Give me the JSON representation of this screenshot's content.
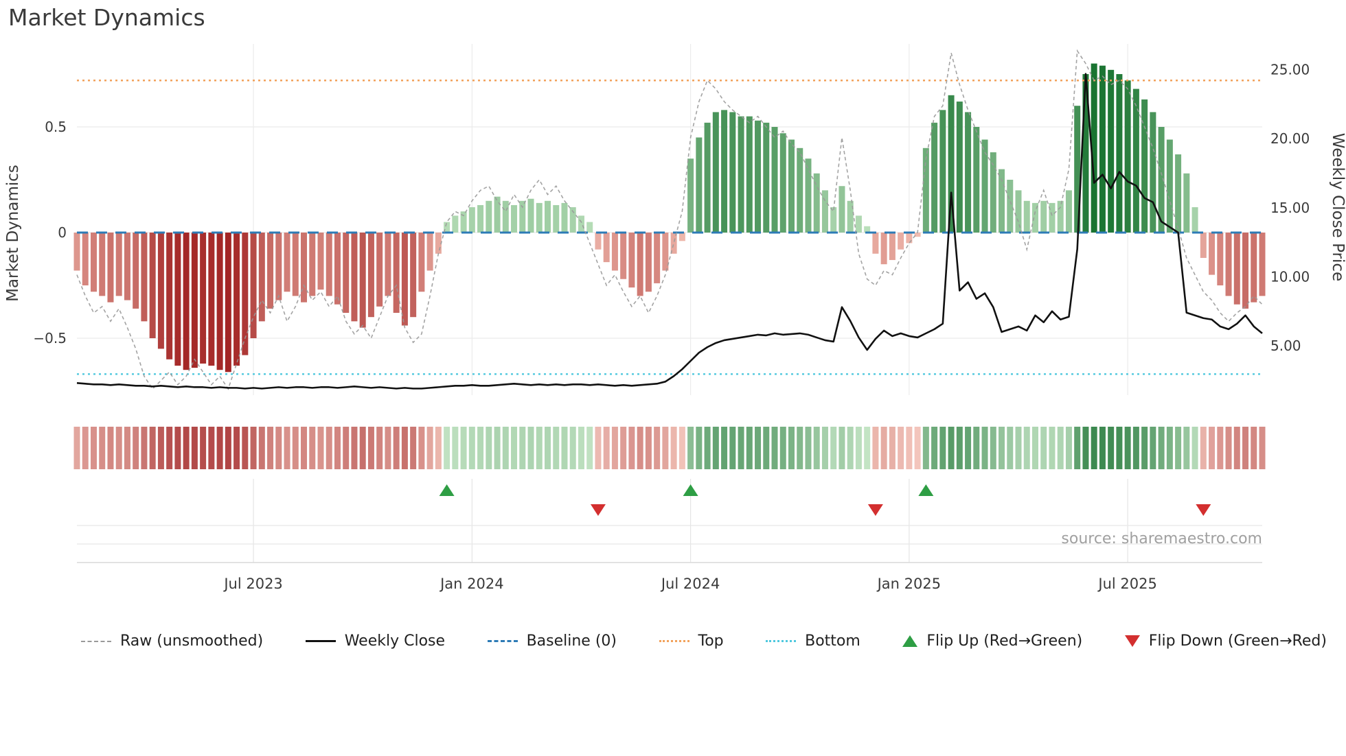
{
  "title": "Market Dynamics",
  "source": "source: sharemaestro.com",
  "colors": {
    "baseline": "#2d7bb6",
    "top_line": "#f2a25c",
    "bottom_line": "#4fc8de",
    "raw_line": "#999999",
    "close_line": "#111111",
    "flip_up": "#2e9e44",
    "flip_down": "#d32f2f",
    "bar_pos_light": "#bfe3bf",
    "bar_pos_dark": "#1a7431",
    "bar_neg_light": "#f3c0b4",
    "bar_neg_dark": "#9e1c1c",
    "grid": "#ebebeb",
    "axis_text": "#3a3a3a",
    "source_text": "#a0a0a0"
  },
  "legend": {
    "items": [
      {
        "label": "Raw (unsmoothed)"
      },
      {
        "label": "Weekly Close"
      },
      {
        "label": "Baseline (0)"
      },
      {
        "label": "Top"
      },
      {
        "label": "Bottom"
      },
      {
        "label": "Flip Up (Red→Green)"
      },
      {
        "label": "Flip Down (Green→Red)"
      }
    ]
  },
  "chart_data": {
    "type": "bar",
    "title": "Market Dynamics",
    "n_weeks": 142,
    "left_axis": {
      "label": "Market Dynamics",
      "ticks": [
        0.5,
        0,
        -0.5
      ],
      "tick_labels": [
        "0.5",
        "0",
        "−0.5"
      ],
      "range": [
        -0.78,
        0.88
      ]
    },
    "right_axis": {
      "label": "Weekly Close Price",
      "ticks": [
        25,
        20,
        15,
        10,
        5
      ],
      "tick_labels": [
        "25.00",
        "20.00",
        "15.00",
        "10.00",
        "5.00"
      ],
      "range": [
        1.5,
        26
      ]
    },
    "x_ticks": {
      "weeks": [
        21,
        47,
        73,
        99,
        125
      ],
      "labels": [
        "Jul 2023",
        "Jan 2024",
        "Jul 2024",
        "Jan 2025",
        "Jul 2025"
      ]
    },
    "baseline": 0,
    "top_level": 0.72,
    "bottom_level": -0.67,
    "flip_up_weeks": [
      44,
      73,
      101
    ],
    "flip_down_weeks": [
      62,
      95,
      134
    ],
    "heatmap": {
      "derived_from": "bar_values"
    },
    "series": [
      {
        "name": "Oscillator (bars)",
        "type": "bar",
        "axis": "left",
        "values": [
          -0.18,
          -0.25,
          -0.28,
          -0.3,
          -0.33,
          -0.3,
          -0.32,
          -0.36,
          -0.42,
          -0.5,
          -0.55,
          -0.6,
          -0.63,
          -0.65,
          -0.64,
          -0.62,
          -0.63,
          -0.65,
          -0.66,
          -0.63,
          -0.58,
          -0.5,
          -0.42,
          -0.36,
          -0.32,
          -0.28,
          -0.3,
          -0.33,
          -0.3,
          -0.27,
          -0.3,
          -0.34,
          -0.38,
          -0.42,
          -0.45,
          -0.4,
          -0.35,
          -0.3,
          -0.38,
          -0.44,
          -0.4,
          -0.28,
          -0.18,
          -0.1,
          0.05,
          0.08,
          0.1,
          0.12,
          0.13,
          0.15,
          0.17,
          0.15,
          0.13,
          0.15,
          0.16,
          0.14,
          0.15,
          0.13,
          0.14,
          0.12,
          0.08,
          0.05,
          -0.08,
          -0.14,
          -0.18,
          -0.22,
          -0.26,
          -0.3,
          -0.28,
          -0.24,
          -0.18,
          -0.1,
          -0.04,
          0.35,
          0.45,
          0.52,
          0.57,
          0.58,
          0.57,
          0.55,
          0.55,
          0.53,
          0.52,
          0.5,
          0.47,
          0.44,
          0.4,
          0.35,
          0.28,
          0.2,
          0.12,
          0.22,
          0.15,
          0.08,
          0.03,
          -0.1,
          -0.15,
          -0.13,
          -0.08,
          -0.05,
          -0.02,
          0.4,
          0.52,
          0.58,
          0.65,
          0.62,
          0.57,
          0.5,
          0.44,
          0.38,
          0.3,
          0.25,
          0.2,
          0.15,
          0.14,
          0.15,
          0.14,
          0.15,
          0.2,
          0.6,
          0.75,
          0.8,
          0.79,
          0.77,
          0.75,
          0.72,
          0.68,
          0.63,
          0.57,
          0.5,
          0.44,
          0.37,
          0.28,
          0.12,
          -0.12,
          -0.2,
          -0.25,
          -0.3,
          -0.34,
          -0.36,
          -0.33,
          -0.3
        ]
      },
      {
        "name": "Raw (unsmoothed)",
        "type": "line-dashed",
        "axis": "left",
        "values": [
          -0.2,
          -0.3,
          -0.38,
          -0.35,
          -0.42,
          -0.36,
          -0.45,
          -0.55,
          -0.68,
          -0.74,
          -0.7,
          -0.66,
          -0.72,
          -0.68,
          -0.6,
          -0.66,
          -0.72,
          -0.68,
          -0.74,
          -0.62,
          -0.5,
          -0.4,
          -0.32,
          -0.38,
          -0.3,
          -0.42,
          -0.35,
          -0.25,
          -0.32,
          -0.28,
          -0.35,
          -0.3,
          -0.42,
          -0.48,
          -0.44,
          -0.5,
          -0.4,
          -0.3,
          -0.25,
          -0.45,
          -0.52,
          -0.48,
          -0.3,
          -0.1,
          0.05,
          0.1,
          0.08,
          0.15,
          0.2,
          0.22,
          0.15,
          0.1,
          0.18,
          0.12,
          0.2,
          0.25,
          0.18,
          0.22,
          0.15,
          0.1,
          0.05,
          -0.05,
          -0.15,
          -0.25,
          -0.2,
          -0.28,
          -0.35,
          -0.3,
          -0.38,
          -0.3,
          -0.2,
          -0.05,
          0.1,
          0.45,
          0.62,
          0.72,
          0.68,
          0.62,
          0.58,
          0.55,
          0.52,
          0.55,
          0.5,
          0.45,
          0.48,
          0.42,
          0.38,
          0.3,
          0.22,
          0.15,
          0.1,
          0.45,
          0.2,
          -0.1,
          -0.22,
          -0.25,
          -0.18,
          -0.2,
          -0.12,
          -0.05,
          0.0,
          0.35,
          0.55,
          0.6,
          0.85,
          0.7,
          0.58,
          0.48,
          0.38,
          0.32,
          0.25,
          0.15,
          0.05,
          -0.08,
          0.1,
          0.2,
          0.08,
          0.12,
          0.3,
          0.86,
          0.8,
          0.72,
          0.74,
          0.7,
          0.72,
          0.68,
          0.6,
          0.5,
          0.4,
          0.28,
          0.15,
          0.02,
          -0.12,
          -0.2,
          -0.28,
          -0.32,
          -0.38,
          -0.42,
          -0.38,
          -0.35,
          -0.3,
          -0.34
        ]
      },
      {
        "name": "Weekly Close",
        "type": "line",
        "axis": "right",
        "values": [
          2.3,
          2.25,
          2.2,
          2.2,
          2.15,
          2.2,
          2.15,
          2.1,
          2.1,
          2.05,
          2.1,
          2.05,
          2.0,
          2.05,
          2.0,
          2.0,
          1.95,
          2.0,
          1.95,
          1.95,
          1.9,
          1.95,
          1.9,
          1.95,
          2.0,
          1.95,
          2.0,
          2.0,
          1.95,
          2.0,
          2.0,
          1.95,
          2.0,
          2.05,
          2.0,
          1.95,
          2.0,
          1.95,
          1.9,
          1.95,
          1.9,
          1.9,
          1.95,
          2.0,
          2.05,
          2.1,
          2.1,
          2.15,
          2.1,
          2.1,
          2.15,
          2.2,
          2.25,
          2.2,
          2.15,
          2.2,
          2.15,
          2.2,
          2.15,
          2.2,
          2.2,
          2.15,
          2.2,
          2.15,
          2.1,
          2.15,
          2.1,
          2.15,
          2.2,
          2.25,
          2.4,
          2.8,
          3.3,
          3.9,
          4.5,
          4.9,
          5.2,
          5.4,
          5.5,
          5.6,
          5.7,
          5.8,
          5.75,
          5.9,
          5.8,
          5.85,
          5.9,
          5.8,
          5.6,
          5.4,
          5.3,
          7.8,
          6.8,
          5.6,
          4.7,
          5.5,
          6.1,
          5.7,
          5.9,
          5.7,
          5.6,
          5.9,
          6.2,
          6.6,
          16.1,
          9.0,
          9.6,
          8.4,
          8.8,
          7.8,
          6.0,
          6.2,
          6.4,
          6.1,
          7.2,
          6.7,
          7.5,
          6.9,
          7.1,
          12.0,
          24.7,
          16.8,
          17.4,
          16.4,
          17.6,
          16.9,
          16.6,
          15.7,
          15.4,
          14.0,
          13.6,
          13.2,
          7.4,
          7.2,
          7.0,
          6.9,
          6.4,
          6.2,
          6.6,
          7.2,
          6.4,
          5.9
        ]
      }
    ]
  }
}
